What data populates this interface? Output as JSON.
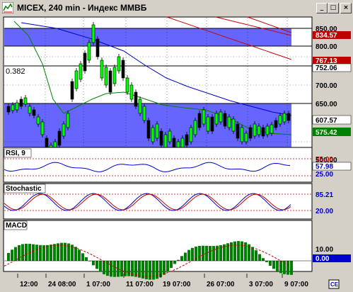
{
  "window": {
    "title": "MICEX, 240 min - Индекс ММВБ",
    "buttons": [
      "min",
      "max",
      "close"
    ]
  },
  "price_panel": {
    "fib_label": "0.382",
    "axis_labels": [
      "850.00",
      "800.00",
      "752.06",
      "700.00",
      "650.00",
      "607.57",
      "575.42",
      "500.00"
    ],
    "badges": [
      {
        "text": "834.57",
        "bg": "#c00000"
      },
      {
        "text": "767.13",
        "bg": "#c00000"
      },
      {
        "text": "752.06",
        "bg": "#ffffff"
      },
      {
        "text": "607.57",
        "bg": "#ffffff"
      },
      {
        "text": "575.42",
        "bg": "#008000"
      }
    ]
  },
  "rsi_panel": {
    "label": "RSI, 9",
    "axis_labels": [
      "75.00",
      "57.98",
      "25.00"
    ]
  },
  "stoch_panel": {
    "label": "Stochastic",
    "axis_labels": [
      "85.21",
      "20.00"
    ]
  },
  "macd_panel": {
    "label": "MACD",
    "axis_labels": [
      "10.00",
      "0.00"
    ]
  },
  "time_axis": {
    "labels": [
      "12:00",
      "24 08:00",
      "1 07:00",
      "11 07:00",
      "19 07:00",
      "26 07:00",
      "3 07:00",
      "9 07:00"
    ]
  },
  "colors": {
    "band": "#6666ff",
    "up_candle": "#00ff00",
    "ma_blue": "#0000cc",
    "ma_green": "#008000",
    "trend_red": "#cc0000",
    "macd_bar": "#008000"
  },
  "icons": {
    "corner": "chart-scroll-icon"
  }
}
